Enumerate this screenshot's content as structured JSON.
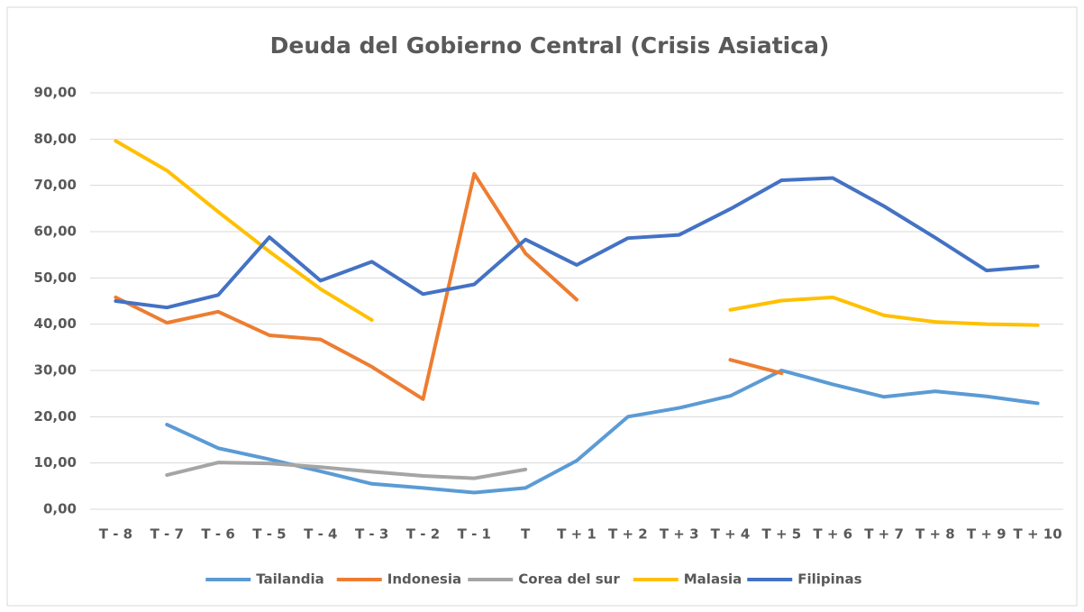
{
  "chart_data": {
    "type": "line",
    "title": "Deuda del Gobierno Central (Crisis Asiatica)",
    "categories": [
      "T - 8",
      "T - 7",
      "T - 6",
      "T - 5",
      "T - 4",
      "T - 3",
      "T - 2",
      "T - 1",
      "T",
      "T + 1",
      "T + 2",
      "T + 3",
      "T + 4",
      "T + 5",
      "T + 6",
      "T + 7",
      "T + 8",
      "T + 9",
      "T + 10"
    ],
    "series": [
      {
        "name": "Tailandia",
        "color": "#5b9bd5",
        "values": [
          null,
          18.3,
          13.2,
          10.8,
          8.2,
          5.5,
          4.6,
          3.6,
          4.6,
          10.5,
          20.0,
          21.9,
          24.5,
          30.0,
          27.0,
          24.3,
          25.5,
          24.4,
          22.9
        ]
      },
      {
        "name": "Indonesia",
        "color": "#ed7d31",
        "values": [
          45.8,
          40.3,
          42.7,
          37.6,
          36.7,
          30.8,
          23.8,
          72.5,
          55.3,
          45.3,
          null,
          null,
          32.3,
          29.4,
          null,
          null,
          null,
          null,
          null
        ]
      },
      {
        "name": "Corea del sur",
        "color": "#a5a5a5",
        "values": [
          null,
          7.4,
          10.1,
          9.9,
          9.1,
          8.1,
          7.2,
          6.7,
          8.6,
          null,
          null,
          null,
          null,
          null,
          null,
          null,
          null,
          null,
          null
        ]
      },
      {
        "name": "Malasia",
        "color": "#ffc000",
        "values": [
          79.6,
          73.2,
          64.3,
          55.7,
          47.6,
          40.9,
          null,
          null,
          null,
          null,
          null,
          null,
          43.1,
          45.1,
          45.8,
          41.9,
          40.5,
          40.0,
          39.8
        ]
      },
      {
        "name": "Filipinas",
        "color": "#4472c4",
        "values": [
          45.0,
          43.6,
          46.3,
          58.8,
          49.4,
          53.5,
          46.5,
          48.6,
          58.3,
          52.8,
          58.6,
          59.3,
          64.9,
          71.1,
          71.6,
          65.5,
          58.7,
          51.6,
          52.5
        ]
      }
    ],
    "ylim": [
      0,
      90
    ],
    "yticks": [
      {
        "value": 0,
        "label": "0,00"
      },
      {
        "value": 10,
        "label": "10,00"
      },
      {
        "value": 20,
        "label": "20,00"
      },
      {
        "value": 30,
        "label": "30,00"
      },
      {
        "value": 40,
        "label": "40,00"
      },
      {
        "value": 50,
        "label": "50,00"
      },
      {
        "value": 60,
        "label": "60,00"
      },
      {
        "value": 70,
        "label": "70,00"
      },
      {
        "value": 80,
        "label": "80,00"
      },
      {
        "value": 90,
        "label": "90,00"
      }
    ],
    "grid": true,
    "legend": "bottom"
  }
}
